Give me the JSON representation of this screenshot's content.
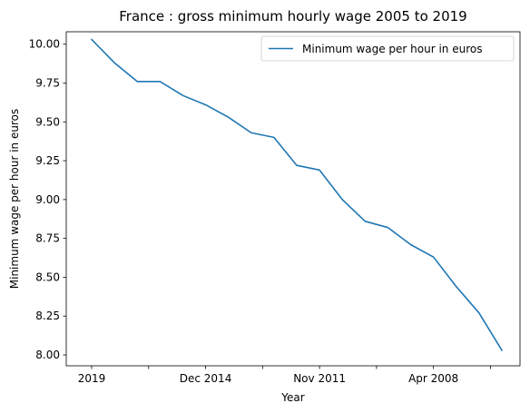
{
  "chart_data": {
    "type": "line",
    "title": "France : gross minimum hourly wage 2005 to 2019",
    "xlabel": "Year",
    "ylabel": "Minimum wage per hour in euros",
    "x": [
      "2019",
      "",
      "",
      "",
      "",
      "Dec 2014",
      "",
      "",
      "",
      "",
      "Nov 2011",
      "",
      "",
      "",
      "",
      "Apr 2008",
      "",
      "",
      ""
    ],
    "x_tick_labels": [
      "2019",
      "",
      "Dec 2014",
      "",
      "Nov 2011",
      "",
      "Apr 2008",
      ""
    ],
    "y_ticks": [
      "8.00",
      "8.25",
      "8.50",
      "8.75",
      "9.00",
      "9.25",
      "9.50",
      "9.75",
      "10.00"
    ],
    "series": [
      {
        "name": "Minimum wage per hour in euros",
        "color": "#1f77b4",
        "values": [
          10.03,
          9.88,
          9.76,
          9.76,
          9.67,
          9.61,
          9.53,
          9.43,
          9.4,
          9.22,
          9.19,
          9.0,
          8.86,
          8.82,
          8.71,
          8.63,
          8.44,
          8.27,
          8.03
        ]
      }
    ],
    "ylim": [
      7.93,
      10.08
    ],
    "grid": false,
    "legend": "top-right"
  }
}
